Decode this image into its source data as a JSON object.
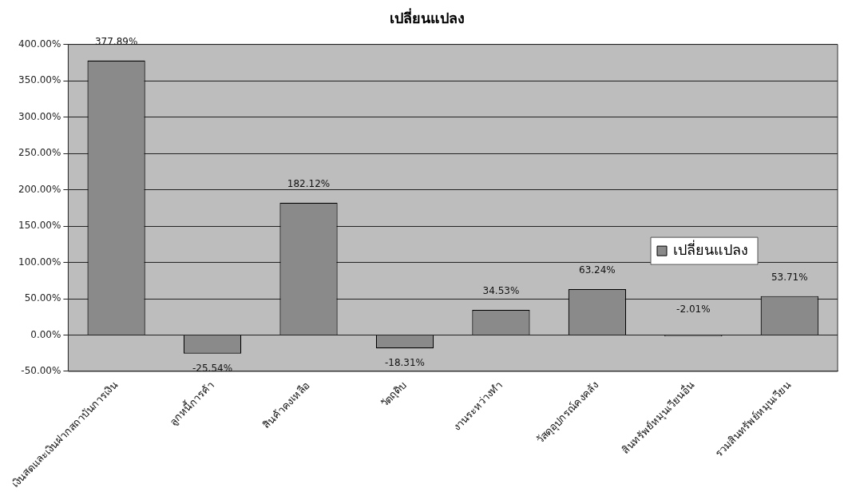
{
  "chart_data": {
    "type": "bar",
    "title": "เปลี่ยนแปลง",
    "categories": [
      "เงินสดและเงินฝากสถาบันการเงิน",
      "ลูกหนี้การค้า",
      "สินค้าคงเหลือ",
      "วัตถุดิบ",
      "งานระหว่างทำ",
      "วัสดุอุปกรณ์คงคลัง",
      "สินทรัพย์หมุนเวียนอื่น",
      "รวมสินทรัพย์หมุนเวียน"
    ],
    "series": [
      {
        "name": "เปลี่ยนแปลง",
        "color": "#8a8a8a",
        "values": [
          377.89,
          -25.54,
          182.12,
          -18.31,
          34.53,
          63.24,
          -2.01,
          53.71
        ],
        "value_labels": [
          "377.89%",
          "-25.54%",
          "182.12%",
          "-18.31%",
          "34.53%",
          "63.24%",
          "-2.01%",
          "53.71%"
        ]
      }
    ],
    "ylim": [
      -50,
      400
    ],
    "yticks": [
      {
        "value": -50,
        "label": "-50.00%"
      },
      {
        "value": 0,
        "label": "0.00%"
      },
      {
        "value": 50,
        "label": "50.00%"
      },
      {
        "value": 100,
        "label": "100.00%"
      },
      {
        "value": 150,
        "label": "150.00%"
      },
      {
        "value": 200,
        "label": "200.00%"
      },
      {
        "value": 250,
        "label": "250.00%"
      },
      {
        "value": 300,
        "label": "300.00%"
      },
      {
        "value": 350,
        "label": "350.00%"
      },
      {
        "value": 400,
        "label": "400.00%"
      }
    ],
    "grid": "y",
    "legend": "right"
  }
}
